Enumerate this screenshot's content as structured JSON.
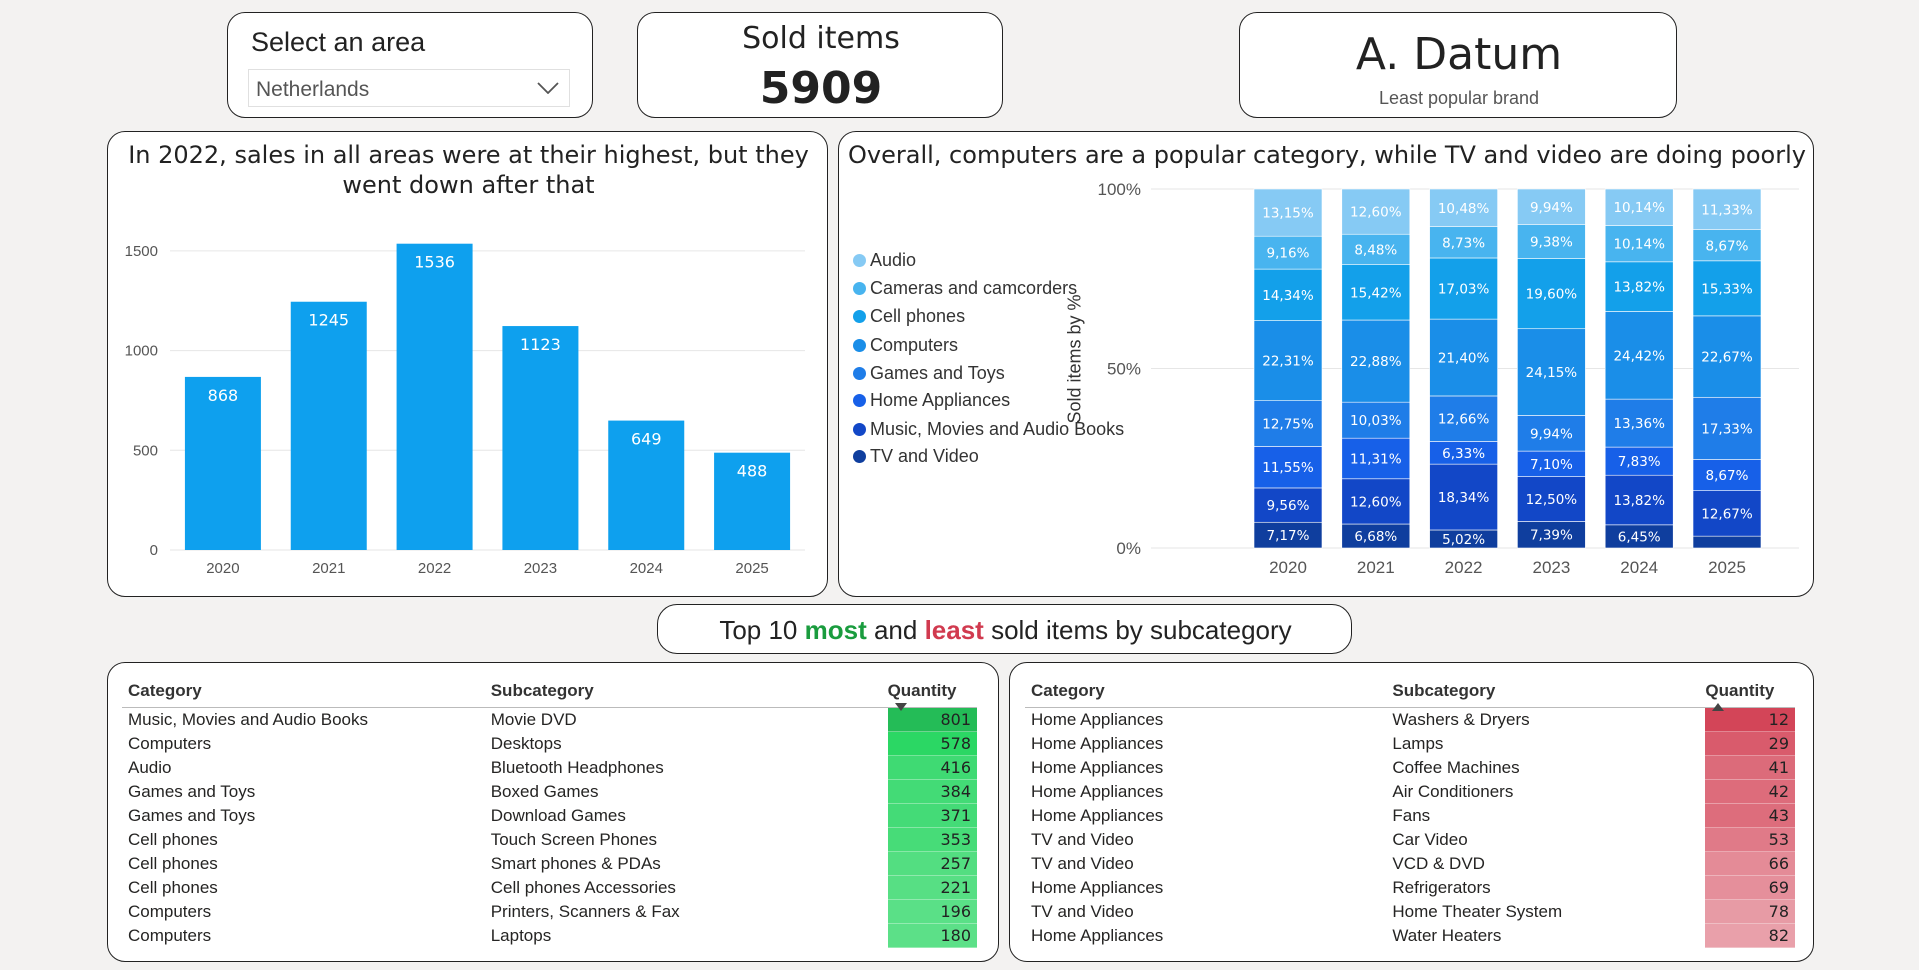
{
  "slicer": {
    "title": "Select an area",
    "value": "Netherlands"
  },
  "kpi_sold": {
    "label": "Sold items",
    "value": "5909"
  },
  "kpi_brand": {
    "value": "A. Datum",
    "label": "Least popular brand"
  },
  "chart_data": [
    {
      "type": "bar",
      "title": "In 2022, sales in all areas were at their highest, but they went down after that",
      "categories": [
        "2020",
        "2021",
        "2022",
        "2023",
        "2024",
        "2025"
      ],
      "values": [
        868,
        1245,
        1536,
        1123,
        649,
        488
      ],
      "yticks": [
        "0",
        "500",
        "1000",
        "1500"
      ],
      "ylim": [
        0,
        1700
      ],
      "grid": true,
      "color": "#0ea0ee"
    },
    {
      "type": "bar",
      "stacked": "100%",
      "title": "Overall, computers are a popular category, while TV and video are doing poorly",
      "ylabel": "Sold items by %",
      "yticks": [
        "0%",
        "50%",
        "100%"
      ],
      "legend_position": "left",
      "categories": [
        "2020",
        "2021",
        "2022",
        "2023",
        "2024",
        "2025"
      ],
      "series": [
        {
          "name": "TV and Video",
          "color": "#0f3e9e",
          "values": [
            7.17,
            6.68,
            5.02,
            7.39,
            6.45,
            3.3
          ],
          "labels": [
            "7,17%",
            "6,68%",
            "5,02%",
            "7,39%",
            "6,45%",
            ""
          ]
        },
        {
          "name": "Music, Movies and Audio Books",
          "color": "#1247c7",
          "values": [
            9.56,
            12.6,
            18.34,
            12.5,
            13.82,
            12.67
          ],
          "labels": [
            "9,56%",
            "12,60%",
            "18,34%",
            "12,50%",
            "13,82%",
            "12,67%"
          ]
        },
        {
          "name": "Home Appliances",
          "color": "#1760e8",
          "values": [
            11.55,
            11.31,
            6.33,
            7.1,
            7.83,
            8.67
          ],
          "labels": [
            "11,55%",
            "11,31%",
            "6,33%",
            "7,10%",
            "7,83%",
            "8,67%"
          ]
        },
        {
          "name": "Games and Toys",
          "color": "#1f7de8",
          "values": [
            12.75,
            10.03,
            12.66,
            9.94,
            13.36,
            17.33
          ],
          "labels": [
            "12,75%",
            "10,03%",
            "12,66%",
            "9,94%",
            "13,36%",
            "17,33%"
          ]
        },
        {
          "name": "Computers",
          "color": "#1a8ee8",
          "values": [
            22.31,
            22.88,
            21.4,
            24.15,
            24.42,
            22.67
          ],
          "labels": [
            "22,31%",
            "22,88%",
            "21,40%",
            "24,15%",
            "24,42%",
            "22,67%"
          ]
        },
        {
          "name": "Cell phones",
          "color": "#13a0ea",
          "values": [
            14.34,
            15.42,
            17.03,
            19.6,
            13.82,
            15.33
          ],
          "labels": [
            "14,34%",
            "15,42%",
            "17,03%",
            "19,60%",
            "13,82%",
            "15,33%"
          ]
        },
        {
          "name": "Cameras and camcorders",
          "color": "#48b4ef",
          "values": [
            9.16,
            8.48,
            8.73,
            9.38,
            10.14,
            8.67
          ],
          "labels": [
            "9,16%",
            "8,48%",
            "8,73%",
            "9,38%",
            "10,14%",
            "8,67%"
          ]
        },
        {
          "name": "Audio",
          "color": "#86caf4",
          "values": [
            13.15,
            12.6,
            10.48,
            9.94,
            10.14,
            11.33
          ],
          "labels": [
            "13,15%",
            "12,60%",
            "10,48%",
            "9,94%",
            "10,14%",
            "11,33%"
          ]
        }
      ],
      "legend_order": [
        "Audio",
        "Cameras and camcorders",
        "Cell phones",
        "Computers",
        "Games and Toys",
        "Home Appliances",
        "Music, Movies and Audio Books",
        "TV and Video"
      ],
      "legend_colors": [
        "#86caf4",
        "#48b4ef",
        "#13a0ea",
        "#1a8ee8",
        "#1f7de8",
        "#1760e8",
        "#1247c7",
        "#0f3e9e"
      ]
    }
  ],
  "banner": {
    "p1": "Top 10 ",
    "most": "most",
    "p2": " and ",
    "least": "least",
    "p3": " sold items by subcategory",
    "most_color": "#1a9c3e",
    "least_color": "#d13a4f"
  },
  "most_table": {
    "headers": [
      "Category",
      "Subcategory",
      "Quantity"
    ],
    "rows": [
      [
        "Music, Movies and Audio Books",
        "Movie DVD",
        "801"
      ],
      [
        "Computers",
        "Desktops",
        "578"
      ],
      [
        "Audio",
        "Bluetooth Headphones",
        "416"
      ],
      [
        "Games and Toys",
        "Boxed Games",
        "384"
      ],
      [
        "Games and Toys",
        "Download Games",
        "371"
      ],
      [
        "Cell phones",
        "Touch Screen Phones",
        "353"
      ],
      [
        "Cell phones",
        "Smart phones & PDAs",
        "257"
      ],
      [
        "Cell phones",
        "Cell phones Accessories",
        "221"
      ],
      [
        "Computers",
        "Printers, Scanners & Fax",
        "196"
      ],
      [
        "Computers",
        "Laptops",
        "180"
      ]
    ]
  },
  "least_table": {
    "headers": [
      "Category",
      "Subcategory",
      "Quantity"
    ],
    "rows": [
      [
        "Home Appliances",
        "Washers & Dryers",
        "12"
      ],
      [
        "Home Appliances",
        "Lamps",
        "29"
      ],
      [
        "Home Appliances",
        "Coffee Machines",
        "41"
      ],
      [
        "Home Appliances",
        "Air Conditioners",
        "42"
      ],
      [
        "Home Appliances",
        "Fans",
        "43"
      ],
      [
        "TV and Video",
        "Car Video",
        "53"
      ],
      [
        "TV and Video",
        "VCD & DVD",
        "66"
      ],
      [
        "Home Appliances",
        "Refrigerators",
        "69"
      ],
      [
        "TV and Video",
        "Home Theater System",
        "78"
      ],
      [
        "Home Appliances",
        "Water Heaters",
        "82"
      ]
    ]
  }
}
